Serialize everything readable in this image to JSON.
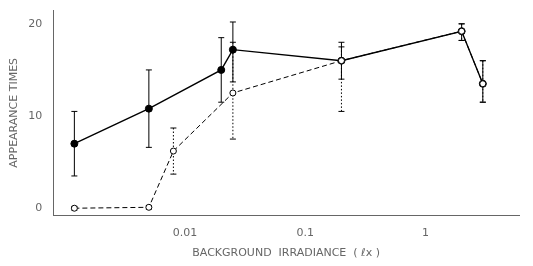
{
  "chart_data": {
    "type": "line",
    "xlabel": "BACKGROUND  IRRADIANCE  ( ℓx )",
    "ylabel": "APPEARANCE TIMES",
    "log": "x",
    "xlim": [
      0.0008,
      6.0
    ],
    "xticks": [
      0.01,
      0.1,
      1
    ],
    "ylim": [
      -0.8,
      21.5
    ],
    "yticks": [
      0,
      10,
      20
    ],
    "grid": false,
    "series": [
      {
        "color": "#000000",
        "marker": "open_circle",
        "line_style": "dashed",
        "x": [
          0.0012,
          0.005,
          0.008,
          0.025,
          0.2,
          2.0,
          3.0
        ],
        "values": [
          0.0,
          0.1,
          6.2,
          12.5,
          16.0,
          19.2,
          13.5
        ],
        "error_lo": [
          0.2,
          0.2,
          2.5,
          5.0,
          5.5,
          1.0,
          2.0
        ],
        "error_hi": [
          0.2,
          0.2,
          2.5,
          5.5,
          1.5,
          0.8,
          2.5
        ]
      },
      {
        "color": "#000000",
        "marker": "circle",
        "line_style": "solid",
        "x": [
          0.0012,
          0.005,
          0.02,
          0.025,
          0.2,
          2.0,
          3.0
        ],
        "values": [
          7.0,
          10.8,
          15.0,
          17.2,
          16.0,
          19.2,
          13.5
        ],
        "error_lo": [
          3.5,
          4.2,
          3.5,
          3.5,
          2.0,
          1.0,
          2.0
        ],
        "error_hi": [
          3.5,
          4.2,
          3.5,
          3.0,
          2.0,
          0.8,
          2.5
        ]
      }
    ]
  }
}
